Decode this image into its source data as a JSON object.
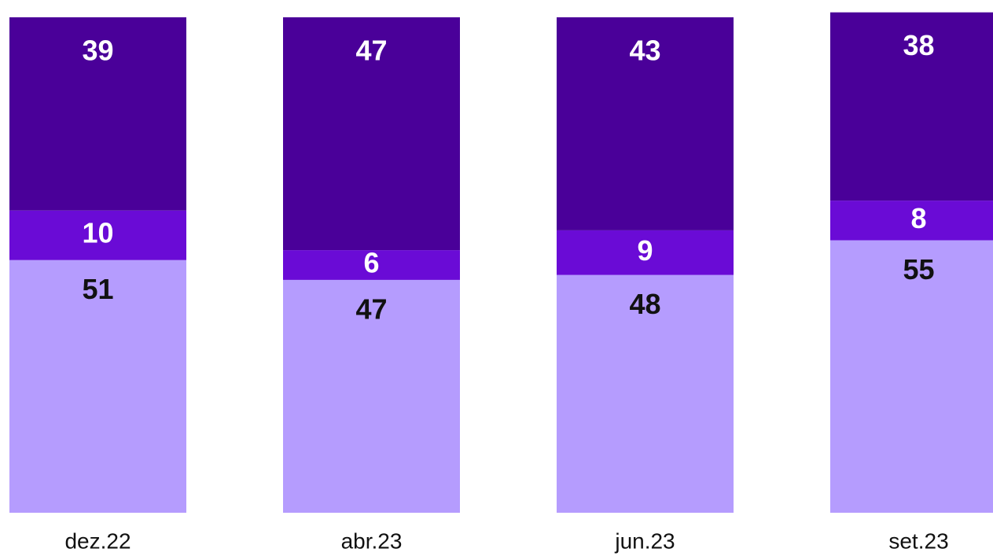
{
  "chart_data": {
    "type": "stacked_bar",
    "categories": [
      "dez.22",
      "abr.23",
      "jun.23",
      "set.23"
    ],
    "series": [
      {
        "color": "#b59cfe",
        "values": [
          51,
          47,
          48,
          55
        ]
      },
      {
        "color": "#6a0bd6",
        "values": [
          10,
          6,
          9,
          8
        ]
      },
      {
        "color": "#4a0099",
        "values": [
          39,
          47,
          43,
          38
        ]
      }
    ],
    "ylim": [
      0,
      100
    ]
  }
}
